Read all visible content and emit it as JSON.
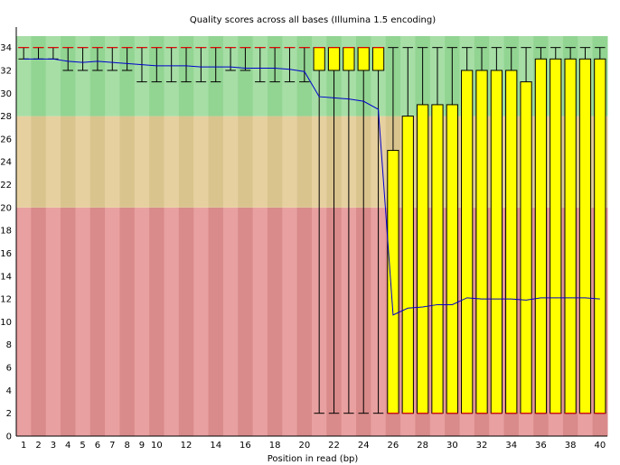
{
  "chart_data": {
    "type": "box",
    "title": "Quality scores across all bases (Illumina 1.5 encoding)",
    "xlabel": "Position in read (bp)",
    "ylabel": "",
    "ylim": [
      0,
      35
    ],
    "y_ticks": [
      "0",
      "2",
      "4",
      "6",
      "8",
      "10",
      "12",
      "14",
      "16",
      "18",
      "20",
      "22",
      "24",
      "26",
      "28",
      "30",
      "32",
      "34"
    ],
    "categories": [
      "1",
      "2",
      "3",
      "4",
      "5",
      "6",
      "7",
      "8",
      "9",
      "10",
      "11",
      "12",
      "13",
      "14",
      "15",
      "16",
      "17",
      "18",
      "19",
      "20",
      "21",
      "22",
      "23",
      "24",
      "25",
      "26",
      "27",
      "28",
      "29",
      "30",
      "31",
      "32",
      "33",
      "34",
      "35",
      "36",
      "37",
      "38",
      "39",
      "40"
    ],
    "x_tick_labels": [
      "1",
      "2",
      "3",
      "4",
      "5",
      "6",
      "7",
      "8",
      "9",
      "10",
      "12",
      "14",
      "16",
      "18",
      "20",
      "22",
      "24",
      "26",
      "28",
      "30",
      "32",
      "34",
      "36",
      "38",
      "40"
    ],
    "background_bands": [
      {
        "from": 0,
        "to": 20,
        "color": "#e8a0a0",
        "alt_color": "#d98a8a"
      },
      {
        "from": 20,
        "to": 28,
        "color": "#e6d0a0",
        "alt_color": "#d9c48e"
      },
      {
        "from": 28,
        "to": 35,
        "color": "#a6dea6",
        "alt_color": "#92d492"
      }
    ],
    "box_color": "#ffff00",
    "median_color": "#ff0000",
    "mean_line_color": "#0000cc",
    "boxes": [
      {
        "q1": 34,
        "median": 34,
        "q3": 34,
        "low": 33,
        "high": 34,
        "mean": 33.0
      },
      {
        "q1": 34,
        "median": 34,
        "q3": 34,
        "low": 33,
        "high": 34,
        "mean": 33.0
      },
      {
        "q1": 34,
        "median": 34,
        "q3": 34,
        "low": 33,
        "high": 34,
        "mean": 33.0
      },
      {
        "q1": 34,
        "median": 34,
        "q3": 34,
        "low": 32,
        "high": 34,
        "mean": 32.8
      },
      {
        "q1": 34,
        "median": 34,
        "q3": 34,
        "low": 32,
        "high": 34,
        "mean": 32.7
      },
      {
        "q1": 34,
        "median": 34,
        "q3": 34,
        "low": 32,
        "high": 34,
        "mean": 32.8
      },
      {
        "q1": 34,
        "median": 34,
        "q3": 34,
        "low": 32,
        "high": 34,
        "mean": 32.7
      },
      {
        "q1": 34,
        "median": 34,
        "q3": 34,
        "low": 32,
        "high": 34,
        "mean": 32.6
      },
      {
        "q1": 34,
        "median": 34,
        "q3": 34,
        "low": 31,
        "high": 34,
        "mean": 32.5
      },
      {
        "q1": 34,
        "median": 34,
        "q3": 34,
        "low": 31,
        "high": 34,
        "mean": 32.4
      },
      {
        "q1": 34,
        "median": 34,
        "q3": 34,
        "low": 31,
        "high": 34,
        "mean": 32.4
      },
      {
        "q1": 34,
        "median": 34,
        "q3": 34,
        "low": 31,
        "high": 34,
        "mean": 32.4
      },
      {
        "q1": 34,
        "median": 34,
        "q3": 34,
        "low": 31,
        "high": 34,
        "mean": 32.3
      },
      {
        "q1": 34,
        "median": 34,
        "q3": 34,
        "low": 31,
        "high": 34,
        "mean": 32.3
      },
      {
        "q1": 34,
        "median": 34,
        "q3": 34,
        "low": 32,
        "high": 34,
        "mean": 32.3
      },
      {
        "q1": 34,
        "median": 34,
        "q3": 34,
        "low": 32,
        "high": 34,
        "mean": 32.2
      },
      {
        "q1": 34,
        "median": 34,
        "q3": 34,
        "low": 31,
        "high": 34,
        "mean": 32.2
      },
      {
        "q1": 34,
        "median": 34,
        "q3": 34,
        "low": 31,
        "high": 34,
        "mean": 32.2
      },
      {
        "q1": 34,
        "median": 34,
        "q3": 34,
        "low": 31,
        "high": 34,
        "mean": 32.1
      },
      {
        "q1": 34,
        "median": 34,
        "q3": 34,
        "low": 31,
        "high": 34,
        "mean": 31.9
      },
      {
        "q1": 32,
        "median": 34,
        "q3": 34,
        "low": 2,
        "high": 34,
        "mean": 29.7
      },
      {
        "q1": 32,
        "median": 34,
        "q3": 34,
        "low": 2,
        "high": 34,
        "mean": 29.6
      },
      {
        "q1": 32,
        "median": 34,
        "q3": 34,
        "low": 2,
        "high": 34,
        "mean": 29.5
      },
      {
        "q1": 32,
        "median": 34,
        "q3": 34,
        "low": 2,
        "high": 34,
        "mean": 29.3
      },
      {
        "q1": 32,
        "median": 34,
        "q3": 34,
        "low": 2,
        "high": 34,
        "mean": 28.6
      },
      {
        "q1": 2,
        "median": 2,
        "q3": 25,
        "low": 2,
        "high": 34,
        "mean": 10.6
      },
      {
        "q1": 2,
        "median": 2,
        "q3": 28,
        "low": 2,
        "high": 34,
        "mean": 11.2
      },
      {
        "q1": 2,
        "median": 2,
        "q3": 29,
        "low": 2,
        "high": 34,
        "mean": 11.3
      },
      {
        "q1": 2,
        "median": 2,
        "q3": 29,
        "low": 2,
        "high": 34,
        "mean": 11.5
      },
      {
        "q1": 2,
        "median": 2,
        "q3": 29,
        "low": 2,
        "high": 34,
        "mean": 11.5
      },
      {
        "q1": 2,
        "median": 2,
        "q3": 32,
        "low": 2,
        "high": 34,
        "mean": 12.1
      },
      {
        "q1": 2,
        "median": 2,
        "q3": 32,
        "low": 2,
        "high": 34,
        "mean": 12.0
      },
      {
        "q1": 2,
        "median": 2,
        "q3": 32,
        "low": 2,
        "high": 34,
        "mean": 12.0
      },
      {
        "q1": 2,
        "median": 2,
        "q3": 32,
        "low": 2,
        "high": 34,
        "mean": 12.0
      },
      {
        "q1": 2,
        "median": 2,
        "q3": 31,
        "low": 2,
        "high": 34,
        "mean": 11.9
      },
      {
        "q1": 2,
        "median": 2,
        "q3": 33,
        "low": 2,
        "high": 34,
        "mean": 12.1
      },
      {
        "q1": 2,
        "median": 2,
        "q3": 33,
        "low": 2,
        "high": 34,
        "mean": 12.1
      },
      {
        "q1": 2,
        "median": 2,
        "q3": 33,
        "low": 2,
        "high": 34,
        "mean": 12.1
      },
      {
        "q1": 2,
        "median": 2,
        "q3": 33,
        "low": 2,
        "high": 34,
        "mean": 12.1
      },
      {
        "q1": 2,
        "median": 2,
        "q3": 33,
        "low": 2,
        "high": 34,
        "mean": 12.0
      }
    ]
  }
}
